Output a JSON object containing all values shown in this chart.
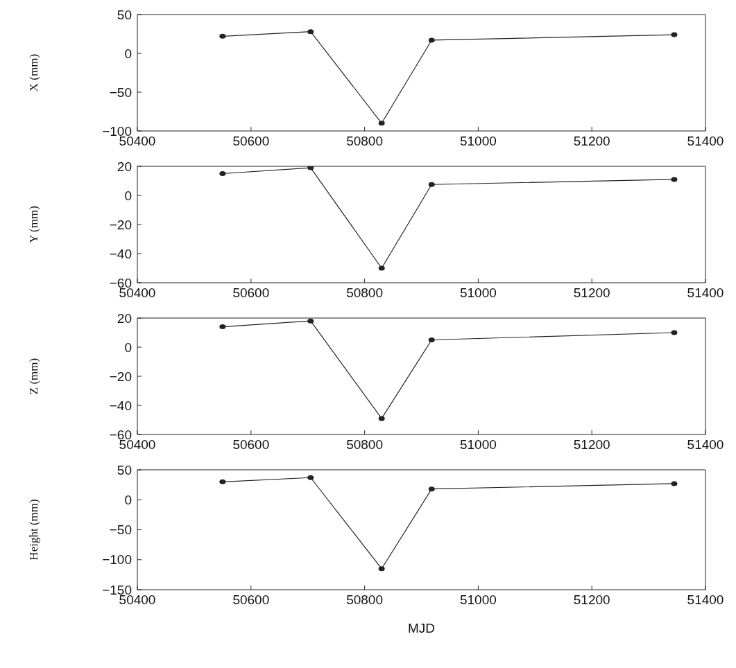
{
  "chart_data": [
    {
      "type": "line",
      "ylabel": "X (mm)",
      "x": [
        50550,
        50705,
        50830,
        50918,
        51345
      ],
      "series": [
        {
          "color": "#222222",
          "values": [
            22,
            28,
            -90,
            17,
            24
          ]
        }
      ],
      "xlim": [
        50400,
        51400
      ],
      "xticks": [
        50400,
        50600,
        50800,
        51000,
        51200,
        51400
      ],
      "ylim": [
        -100,
        50
      ],
      "yticks": [
        -100,
        -50,
        0,
        50
      ],
      "marker": "circle",
      "line_style": "solid",
      "grid": false,
      "legend": false
    },
    {
      "type": "line",
      "ylabel": "Y (mm)",
      "x": [
        50550,
        50705,
        50830,
        50918,
        51345
      ],
      "series": [
        {
          "color": "#222222",
          "values": [
            15,
            19,
            -50,
            7.5,
            11
          ]
        }
      ],
      "xlim": [
        50400,
        51400
      ],
      "xticks": [
        50400,
        50600,
        50800,
        51000,
        51200,
        51400
      ],
      "ylim": [
        -60,
        20
      ],
      "yticks": [
        -60,
        -40,
        -20,
        0,
        20
      ],
      "marker": "circle",
      "line_style": "solid",
      "grid": false,
      "legend": false
    },
    {
      "type": "line",
      "ylabel": "Z (mm)",
      "x": [
        50550,
        50705,
        50830,
        50918,
        51345
      ],
      "series": [
        {
          "color": "#222222",
          "values": [
            14,
            18,
            -49,
            5,
            10
          ]
        }
      ],
      "xlim": [
        50400,
        51400
      ],
      "xticks": [
        50400,
        50600,
        50800,
        51000,
        51200,
        51400
      ],
      "ylim": [
        -60,
        20
      ],
      "yticks": [
        -60,
        -40,
        -20,
        0,
        20
      ],
      "marker": "circle",
      "line_style": "solid",
      "grid": false,
      "legend": false
    },
    {
      "type": "line",
      "ylabel": "Height (mm)",
      "xlabel": "MJD",
      "x": [
        50550,
        50705,
        50830,
        50918,
        51345
      ],
      "series": [
        {
          "color": "#222222",
          "values": [
            30,
            37,
            -115,
            18,
            27
          ]
        }
      ],
      "xlim": [
        50400,
        51400
      ],
      "xticks": [
        50400,
        50600,
        50800,
        51000,
        51200,
        51400
      ],
      "ylim": [
        -150,
        50
      ],
      "yticks": [
        -150,
        -100,
        -50,
        0,
        50
      ],
      "marker": "circle",
      "line_style": "solid",
      "grid": false,
      "legend": false
    }
  ]
}
